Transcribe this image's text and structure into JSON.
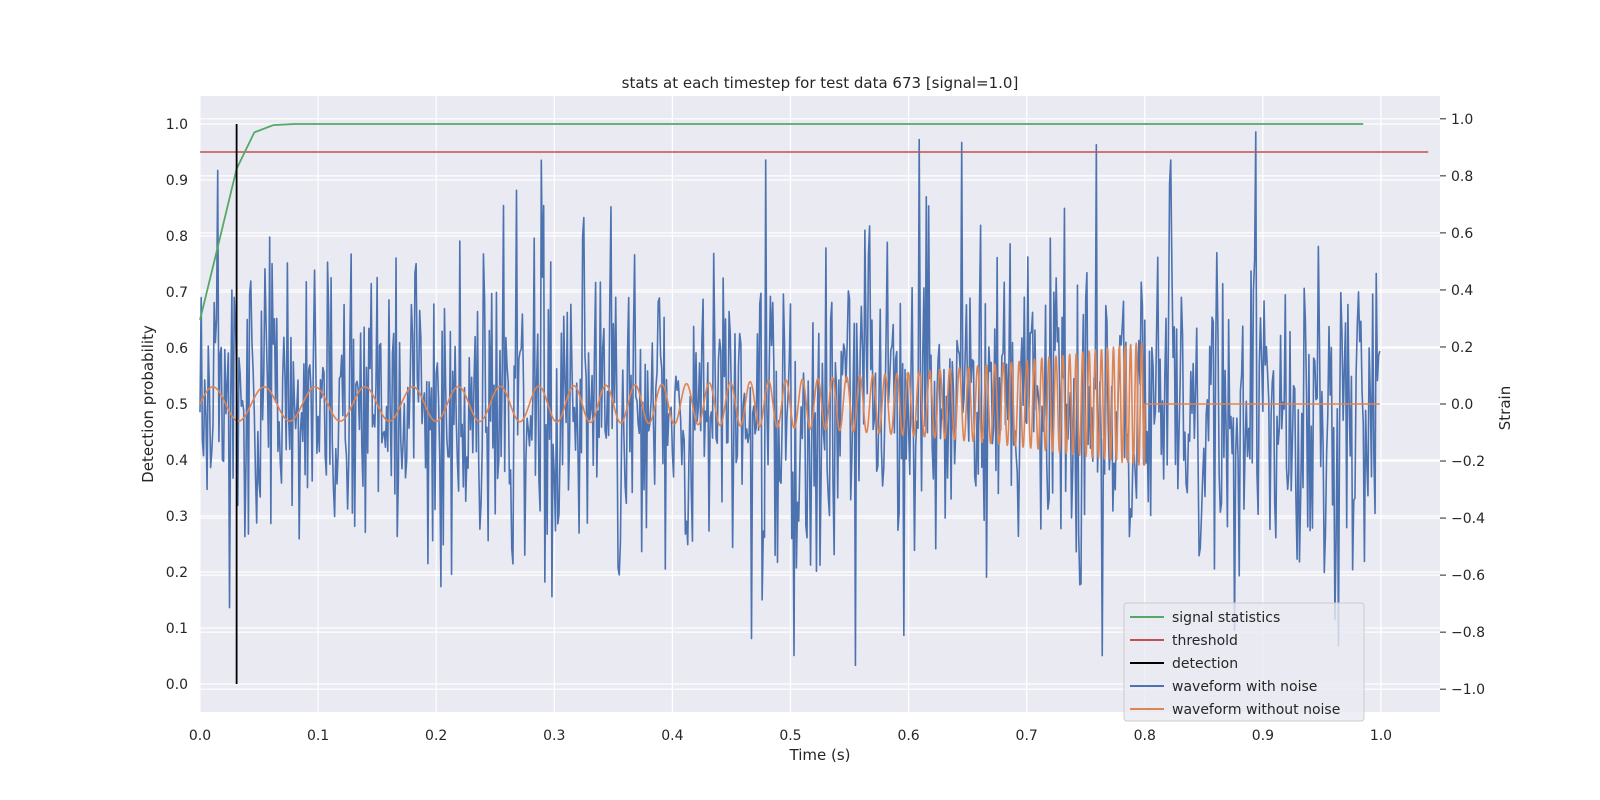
{
  "chart_data": {
    "type": "line",
    "title": "stats at each timestep for test data 673 [signal=1.0]",
    "xlabel": "Time (s)",
    "ylabel": "Detection probability",
    "y2label": "Strain",
    "xlim": [
      0.0,
      1.05
    ],
    "ylim": [
      -0.05,
      1.05
    ],
    "y2lim": [
      -1.08,
      1.08
    ],
    "xticks": [
      "0.0",
      "0.1",
      "0.2",
      "0.3",
      "0.4",
      "0.5",
      "0.6",
      "0.7",
      "0.8",
      "0.9",
      "1.0"
    ],
    "yticks": [
      "0.0",
      "0.1",
      "0.2",
      "0.3",
      "0.4",
      "0.5",
      "0.6",
      "0.7",
      "0.8",
      "0.9",
      "1.0"
    ],
    "y2ticks": [
      "−1.0",
      "−0.8",
      "−0.6",
      "−0.4",
      "−0.2",
      "0.0",
      "0.2",
      "0.4",
      "0.6",
      "0.8",
      "1.0"
    ],
    "grid": true,
    "legend_position": "lower-right",
    "signal_statistics": {
      "name": "signal statistics",
      "color": "#55a868",
      "x": [
        0.0,
        0.015,
        0.031,
        0.046,
        0.062,
        0.08,
        0.985
      ],
      "y": [
        0.65,
        0.78,
        0.92,
        0.985,
        0.998,
        1.0,
        1.0
      ]
    },
    "threshold": {
      "name": "threshold",
      "color": "#c44e52",
      "value": 0.95,
      "x": [
        0.0,
        1.04
      ]
    },
    "detection": {
      "name": "detection",
      "color": "#000000",
      "x": 0.031,
      "y": [
        0.0,
        1.0
      ]
    },
    "waveform_with_noise": {
      "name": "waveform with noise",
      "color": "#4c72b0",
      "axis": "right",
      "n_samples": 1000,
      "t_range": [
        0.0,
        0.999
      ],
      "amplitude_range": [
        -1.0,
        1.0
      ],
      "description_values": "noisy strain, roughly uniform spread between -0.6 and 0.6 with spikes to ±1.0"
    },
    "waveform_without_noise": {
      "name": "waveform without noise",
      "color": "#dd8452",
      "axis": "right",
      "t_range": [
        0.0,
        0.999
      ],
      "chirp_end": 0.8,
      "start_amplitude": 0.06,
      "peak_amplitude": 0.22,
      "start_frequency_hz": 23,
      "end_frequency_hz": 220
    }
  },
  "legend": {
    "items": [
      {
        "label": "signal statistics",
        "color": "#55a868"
      },
      {
        "label": "threshold",
        "color": "#c44e52"
      },
      {
        "label": "detection",
        "color": "#000000"
      },
      {
        "label": "waveform with noise",
        "color": "#4c72b0"
      },
      {
        "label": "waveform without noise",
        "color": "#dd8452"
      }
    ]
  },
  "colors": {
    "plot_bg": "#eaeaf2",
    "grid": "#ffffff",
    "text": "#262626"
  }
}
